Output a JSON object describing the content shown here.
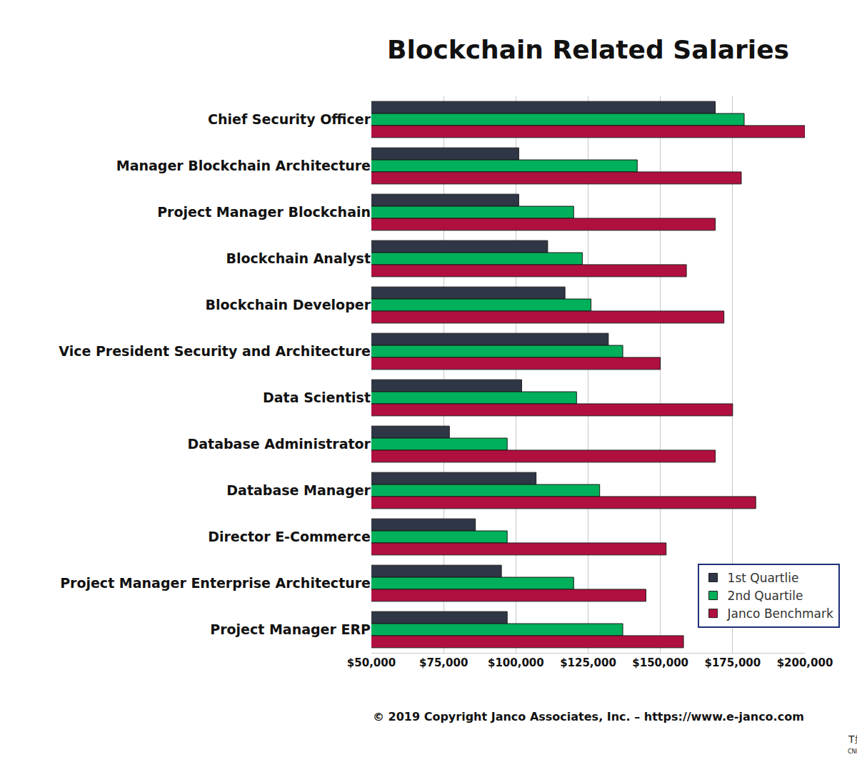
{
  "chart_data": {
    "type": "bar",
    "title": "Blockchain Related Salaries",
    "orientation": "horizontal",
    "categories": [
      "Chief Security Officer",
      "Manager Blockchain Architecture",
      "Project Manager Blockchain",
      "Blockchain Analyst",
      "Blockchain Developer",
      "Vice President Security and Architecture",
      "Data Scientist",
      "Database Administrator",
      "Database Manager",
      "Director E-Commerce",
      "Project Manager Enterprise Architecture",
      "Project Manager ERP"
    ],
    "series": [
      {
        "name": "1st Quartlie",
        "color": "#2f3645",
        "values": [
          169000,
          101000,
          101000,
          111000,
          117000,
          132000,
          102000,
          77000,
          107000,
          86000,
          95000,
          97000
        ]
      },
      {
        "name": "2nd Quartile",
        "color": "#00b05a",
        "values": [
          179000,
          142000,
          120000,
          123000,
          126000,
          137000,
          121000,
          97000,
          129000,
          97000,
          120000,
          137000
        ]
      },
      {
        "name": "Janco Benchmark",
        "color": "#b0103f",
        "values": [
          200000,
          178000,
          169000,
          159000,
          172000,
          150000,
          175000,
          169000,
          183000,
          152000,
          145000,
          158000
        ]
      }
    ],
    "xlim": [
      50000,
      200000
    ],
    "xticks": [
      {
        "value": 50000,
        "label": "$50,000"
      },
      {
        "value": 75000,
        "label": "$75,000"
      },
      {
        "value": 100000,
        "label": "$100,000"
      },
      {
        "value": 125000,
        "label": "$125,000"
      },
      {
        "value": 150000,
        "label": "$150,000"
      },
      {
        "value": 175000,
        "label": "$175,000"
      },
      {
        "value": 200000,
        "label": "$200,000"
      }
    ],
    "grid": true,
    "legend": "lower right",
    "annotations": [
      "© 2019 Copyright Janco Associates, Inc. – https://www.e-janco.com",
      "T媒体",
      "CNITEYES.COM"
    ]
  }
}
